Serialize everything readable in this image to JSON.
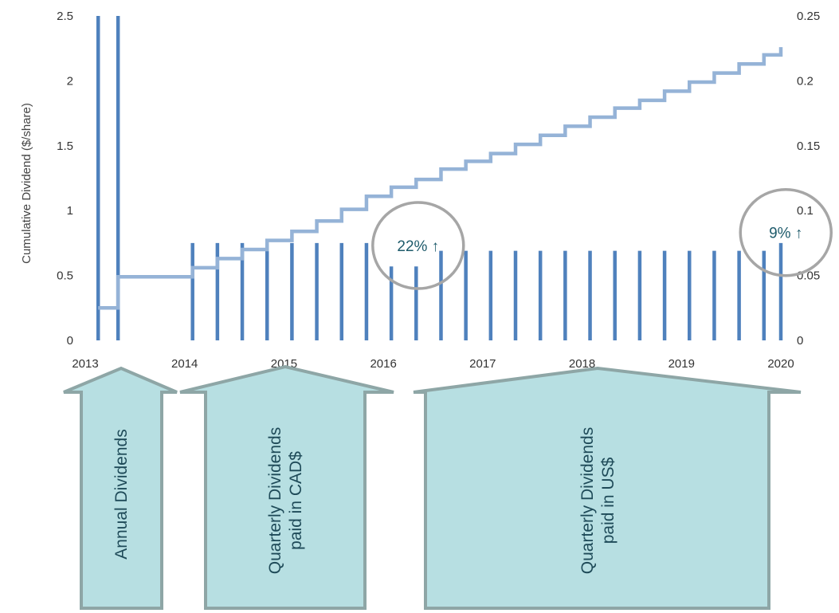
{
  "chart_data": {
    "type": "bar",
    "ylabel_left": "Cumulative Dividend ($/share)",
    "ylim_left": [
      0,
      2.5
    ],
    "yticks_left": [
      "0",
      "0.5",
      "1",
      "1.5",
      "2",
      "2.5"
    ],
    "ylim_right": [
      0,
      0.25
    ],
    "yticks_right": [
      "0",
      "0.05",
      "0.1",
      "0.15",
      "0.2",
      "0.25"
    ],
    "xlim": [
      2013,
      2020
    ],
    "xticks": [
      "2013",
      "2014",
      "2015",
      "2016",
      "2017",
      "2018",
      "2019",
      "2020"
    ],
    "grid": false,
    "series": [
      {
        "type": "bar",
        "axis": "right",
        "color": "#4f81bd",
        "x": [
          2013.13,
          2013.33,
          2014.08,
          2014.33,
          2014.58,
          2014.83,
          2015.08,
          2015.33,
          2015.58,
          2015.83,
          2016.08,
          2016.33,
          2016.58,
          2016.83,
          2017.08,
          2017.33,
          2017.58,
          2017.83,
          2018.08,
          2018.33,
          2018.58,
          2018.83,
          2019.08,
          2019.33,
          2019.58,
          2019.83,
          2020.0
        ],
        "values": [
          0.25,
          0.25,
          0.075,
          0.075,
          0.075,
          0.075,
          0.075,
          0.075,
          0.075,
          0.075,
          0.057,
          0.057,
          0.069,
          0.069,
          0.069,
          0.069,
          0.069,
          0.069,
          0.069,
          0.069,
          0.069,
          0.069,
          0.069,
          0.069,
          0.069,
          0.069,
          0.075
        ]
      },
      {
        "type": "step",
        "axis": "left",
        "color": "#95b3d7",
        "x": [
          2013.13,
          2013.33,
          2014.08,
          2014.33,
          2014.58,
          2014.83,
          2015.08,
          2015.33,
          2015.58,
          2015.83,
          2016.08,
          2016.33,
          2016.58,
          2016.83,
          2017.08,
          2017.33,
          2017.58,
          2017.83,
          2018.08,
          2018.33,
          2018.58,
          2018.83,
          2019.08,
          2019.33,
          2019.58,
          2019.83,
          2020.0
        ],
        "values": [
          0.25,
          0.49,
          0.56,
          0.63,
          0.7,
          0.77,
          0.84,
          0.92,
          1.01,
          1.11,
          1.18,
          1.24,
          1.32,
          1.38,
          1.44,
          1.51,
          1.58,
          1.65,
          1.72,
          1.79,
          1.85,
          1.92,
          1.99,
          2.06,
          2.13,
          2.2,
          2.26
        ]
      }
    ],
    "annotations": [
      {
        "text": "22% ↑",
        "x": 2016.35,
        "y": 0.078
      },
      {
        "text": "9% ↑",
        "x": 2020.05,
        "y": 0.088
      }
    ]
  },
  "periods": [
    {
      "label_lines": [
        "Annual Dividends"
      ]
    },
    {
      "label_lines": [
        "Quarterly Dividends",
        "paid in CAD$"
      ]
    },
    {
      "label_lines": [
        "Quarterly Dividends",
        "paid in US$"
      ]
    }
  ],
  "colors": {
    "bar": "#4f81bd",
    "step": "#95b3d7",
    "callout_fill": "#b7dfe2",
    "callout_stroke": "#8ea6a6",
    "circle": "#a6a6a6"
  }
}
